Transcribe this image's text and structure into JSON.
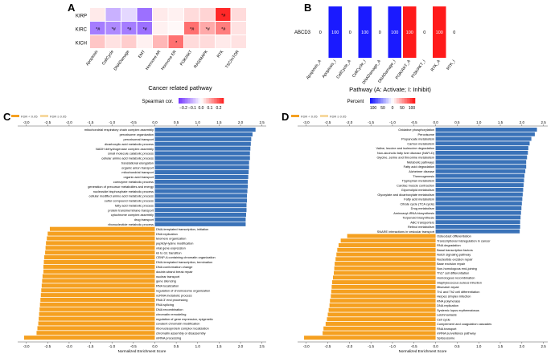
{
  "panels": {
    "a": {
      "letter": "A",
      "xlabel": "Cancer related pathway",
      "rows": [
        "KIRP",
        "KIRC",
        "KICH"
      ],
      "cols": [
        "Apoptosis",
        "CellCycle",
        "DNADamage",
        "EMT",
        "Hormone AR",
        "Hormone ER",
        "PI3K/AKT",
        "RAS/MAPK",
        "RTK",
        "TSC/mTOR"
      ],
      "values": [
        [
          0.03,
          -0.12,
          -0.06,
          -0.22,
          0.03,
          0.02,
          0.05,
          0.06,
          0.35,
          0.05
        ],
        [
          -0.2,
          -0.18,
          -0.2,
          -0.22,
          0.02,
          0.01,
          0.2,
          0.12,
          0.18,
          0.04
        ],
        [
          0.08,
          0.04,
          0.07,
          0.02,
          0.1,
          0.2,
          0.05,
          0.05,
          0.03,
          0.04
        ]
      ],
      "stars": [
        [
          "",
          "",
          "",
          "",
          "",
          "",
          "",
          "",
          "*#",
          ""
        ],
        [
          "*#",
          "*#",
          "*#",
          "*#",
          "",
          "",
          "*#",
          "*#",
          "*#",
          ""
        ],
        [
          "",
          "",
          "",
          "",
          "",
          "*",
          "",
          "",
          "",
          ""
        ]
      ],
      "legend_title": "Spearman cor.",
      "legend_ticks": [
        "−0.2",
        "−0.1",
        "0.0",
        "0.1",
        "0.2"
      ]
    },
    "b": {
      "letter": "B",
      "row_label": "ABCD3",
      "xlabel": "Pathway (A: Activate; I: Inhibit)",
      "cols": [
        "Apoptosis_A",
        "Apoptosis_I",
        "CellCycle_A",
        "CellCycle_I",
        "DNADamage_A",
        "DNADamage_I",
        "PI3K/AKT_A",
        "PI3K/AKT_I",
        "RTK_A",
        "RTK_I"
      ],
      "values": [
        "0",
        "100",
        "0",
        "100",
        "0",
        "100",
        "100",
        "0",
        "100",
        "0"
      ],
      "colors": [
        "#ffffff",
        "#1a1aff",
        "#ffffff",
        "#1a1aff",
        "#ffffff",
        "#1a1aff",
        "#ff1a1a",
        "#ffffff",
        "#ff1a1a",
        "#ffffff"
      ],
      "legend_title": "Percent",
      "legend_ticks": [
        "100",
        "50",
        "0",
        "50",
        "100"
      ]
    },
    "c": {
      "letter": "C",
      "legend": [
        "FDR < 0.05",
        "FDR ≥ 0.05"
      ],
      "xlabel": "Normalized Enrichment Score",
      "ticks": [
        "-3.0",
        "-2.5",
        "-2.0",
        "-1.5",
        "-1.0",
        "-0.5",
        "0.0",
        "0.5",
        "1.0",
        "1.5",
        "2.0",
        "2.5"
      ]
    },
    "d": {
      "letter": "D",
      "legend": [
        "FDR < 0.05",
        "FDR ≥ 0.05"
      ],
      "xlabel": "Normalized Enrichment Score",
      "ticks": [
        "-3.0",
        "-2.5",
        "-2.0",
        "-1.5",
        "-1.0",
        "-0.5",
        "0.0",
        "0.5",
        "1.0",
        "1.5",
        "2.0",
        "2.5"
      ]
    }
  },
  "chart_data": [
    {
      "type": "bar",
      "panel": "C",
      "xlabel": "Normalized Enrichment Score",
      "xlim": [
        -3.2,
        2.6
      ],
      "positive": {
        "color": "#3a72b8",
        "labels": [
          "mitochondrial respiratory chain complex assembly",
          "peroxisome organization",
          "peroxisomal transport",
          "dicarboxylic acid metabolic process",
          "NADH dehydrogenase complex assembly",
          "small molecule catabolic process",
          "cellular amino acid metabolic process",
          "translational elongation",
          "organic anion transport",
          "mitochondrial transport",
          "organic acid transport",
          "coenzyme metabolic process",
          "generation of precursor metabolites and energy",
          "nucleoside bisphosphate metabolic process",
          "cellular modified amino acid metabolic process",
          "sulfur compound metabolic process",
          "fatty acid metabolic process",
          "protein transmembrane transport",
          "cytochrome complex assembly",
          "drug transport",
          "ribonucleotide metabolic process"
        ],
        "values": [
          2.35,
          2.28,
          2.25,
          2.24,
          2.23,
          2.22,
          2.22,
          2.2,
          2.2,
          2.19,
          2.18,
          2.17,
          2.17,
          2.16,
          2.15,
          2.15,
          2.14,
          2.14,
          2.13,
          2.12,
          2.12
        ]
      },
      "negative": {
        "color": "#f5a020",
        "labels": [
          "DNA-templated transcription, initiation",
          "DNA replication",
          "telomere organization",
          "peptidyl-lysine modification",
          "viral gene expression",
          "kb to G1 transition",
          "CENP-A containing chromatin organization",
          "DNA-templated transcription, termination",
          "DNA conformation change",
          "double-strand break repair",
          "nuclear transport",
          "gene silencing",
          "RNA localization",
          "regulation of chromosome organization",
          "ncRNA metabolic process",
          "RNA 3' end processing",
          "RNA splicing",
          "DNA recombination",
          "chromatin remodeling",
          "regulation of gene expression, epigenetic",
          "covalent chromatin modification",
          "ribonucleoprotein complex localization",
          "chromatin assembly or disassembly",
          "mRNA processing"
        ],
        "values": [
          -2.45,
          -2.5,
          -2.52,
          -2.54,
          -2.55,
          -2.56,
          -2.58,
          -2.59,
          -2.6,
          -2.6,
          -2.62,
          -2.63,
          -2.64,
          -2.65,
          -2.66,
          -2.67,
          -2.68,
          -2.69,
          -2.7,
          -2.71,
          -2.72,
          -2.74,
          -2.76,
          -3.05
        ]
      }
    },
    {
      "type": "bar",
      "panel": "D",
      "xlabel": "Normalized Enrichment Score",
      "xlim": [
        -3.2,
        2.6
      ],
      "positive": {
        "color": "#3a72b8",
        "labels": [
          "Oxidative phosphorylation",
          "Peroxisome",
          "Propanoate metabolism",
          "Carbon metabolism",
          "Valine, leucine and isoleucine degradation",
          "Non-alcoholic fatty liver disease (NAFLD)",
          "Glycine, serine and threonine metabolism",
          "Metabolic pathways",
          "Fatty acid degradation",
          "Alzheimer disease",
          "Thermogenesis",
          "Tryptophan metabolism",
          "Cardiac muscle contraction",
          "Glycerolipid metabolism",
          "Glyoxylate and dicarboxylate metabolism",
          "Fatty acid metabolism",
          "Citrate cycle (TCA cycle)",
          "Drug metabolism",
          "Aminoacyl-tRNA biosynthesis",
          "Terpenoid biosynthesis",
          "ABC transporters",
          "Retinol metabolism",
          "SNARE interactions in vesicular transport"
        ],
        "values": [
          2.35,
          2.3,
          2.22,
          2.18,
          2.15,
          2.14,
          2.12,
          2.1,
          2.1,
          2.08,
          2.06,
          2.05,
          2.04,
          2.03,
          2.02,
          2.01,
          2.0,
          1.99,
          1.98,
          1.97,
          1.96,
          1.96,
          1.95
        ]
      },
      "negative": {
        "color": "#f5a020",
        "labels": [
          "Osteoclast differentiation",
          "Transcriptional misregulation in cancer",
          "RNA degradation",
          "Basal transcription factors",
          "Notch signaling pathway",
          "Nucleotide excision repair",
          "Base excision repair",
          "Non-homologous end-joining",
          "Th17 cell differentiation",
          "Homologous recombination",
          "Staphylococcus aureus infection",
          "Mismatch repair",
          "Th1 and Th2 cell differentiation",
          "Herpes simplex infection",
          "RNA polymerase",
          "DNA replication",
          "Systemic lupus erythematosus",
          "Leishmaniasis",
          "Cell cycle",
          "Complement and coagulation cascades",
          "RNA transport",
          "mRNA surveillance pathway",
          "Spliceosome"
        ],
        "values": [
          -2.05,
          -2.2,
          -2.25,
          -2.28,
          -2.3,
          -2.32,
          -2.34,
          -2.35,
          -2.36,
          -2.38,
          -2.4,
          -2.41,
          -2.42,
          -2.43,
          -2.45,
          -2.46,
          -2.48,
          -2.5,
          -2.52,
          -2.55,
          -2.6,
          -2.62,
          -3.05
        ]
      }
    }
  ]
}
